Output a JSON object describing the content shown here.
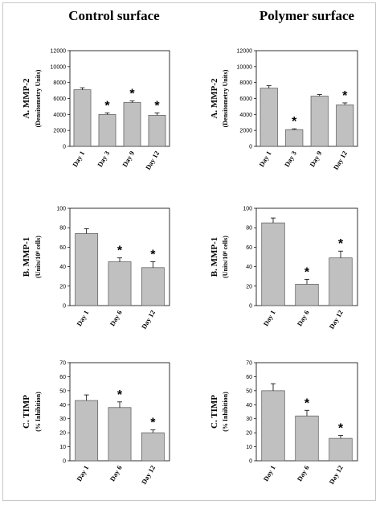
{
  "column_titles": [
    "Control surface",
    "Polymer surface"
  ],
  "colors": {
    "bar_fill": "#c0c0c0",
    "bar_stroke": "#555555",
    "axis": "#000000"
  },
  "chart_data": [
    {
      "type": "bar",
      "column": 0,
      "row": 0,
      "ylabel_main": "A.   MMP-2",
      "ylabel_sub": "(Densitometry Units)",
      "ylim": [
        0,
        12000
      ],
      "yticks": [
        0,
        2000,
        4000,
        6000,
        8000,
        10000,
        12000
      ],
      "categories": [
        "Day 1",
        "Day 3",
        "Day 9",
        "Day 12"
      ],
      "values": [
        7100,
        4000,
        5500,
        3900
      ],
      "errors": [
        250,
        200,
        200,
        300
      ],
      "significant": [
        false,
        true,
        true,
        true
      ]
    },
    {
      "type": "bar",
      "column": 1,
      "row": 0,
      "ylabel_main": "A.   MMP-2",
      "ylabel_sub": "(Densitometry Units)",
      "ylim": [
        0,
        12000
      ],
      "yticks": [
        0,
        2000,
        4000,
        6000,
        8000,
        10000,
        12000
      ],
      "categories": [
        "Day 1",
        "Day 3",
        "Day 9",
        "Day 12"
      ],
      "values": [
        7300,
        2100,
        6300,
        5200
      ],
      "errors": [
        300,
        100,
        200,
        250
      ],
      "significant": [
        false,
        true,
        false,
        true
      ]
    },
    {
      "type": "bar",
      "column": 0,
      "row": 1,
      "ylabel_main": "B. MMP-1",
      "ylabel_sub": "(Units/10⁸ cells)",
      "ylim": [
        0,
        100
      ],
      "yticks": [
        0,
        20,
        40,
        60,
        80,
        100
      ],
      "categories": [
        "Day 1",
        "Day 6",
        "Day 12"
      ],
      "values": [
        74,
        45,
        39
      ],
      "errors": [
        5,
        4,
        6
      ],
      "significant": [
        false,
        true,
        true
      ]
    },
    {
      "type": "bar",
      "column": 1,
      "row": 1,
      "ylabel_main": "B. MMP-1",
      "ylabel_sub": "(Units/10⁸ cells)",
      "ylim": [
        0,
        100
      ],
      "yticks": [
        0,
        20,
        40,
        60,
        80,
        100
      ],
      "categories": [
        "Day 1",
        "Day 6",
        "Day 12"
      ],
      "values": [
        85,
        22,
        49
      ],
      "errors": [
        5,
        5,
        7
      ],
      "significant": [
        false,
        true,
        true
      ]
    },
    {
      "type": "bar",
      "column": 0,
      "row": 2,
      "ylabel_main": "C. TIMP",
      "ylabel_sub": "(% Inhibition)",
      "ylim": [
        0,
        70
      ],
      "yticks": [
        0,
        10,
        20,
        30,
        40,
        50,
        60,
        70
      ],
      "categories": [
        "Day 1",
        "Day 6",
        "Day 12"
      ],
      "values": [
        43,
        38,
        20
      ],
      "errors": [
        4,
        4,
        2
      ],
      "significant": [
        false,
        true,
        true
      ]
    },
    {
      "type": "bar",
      "column": 1,
      "row": 2,
      "ylabel_main": "C. TIMP",
      "ylabel_sub": "(% Inhibition)",
      "ylim": [
        0,
        70
      ],
      "yticks": [
        0,
        10,
        20,
        30,
        40,
        50,
        60,
        70
      ],
      "categories": [
        "Day 1",
        "Day 6",
        "Day 12"
      ],
      "values": [
        50,
        32,
        16
      ],
      "errors": [
        5,
        4,
        2
      ],
      "significant": [
        false,
        true,
        true
      ]
    }
  ],
  "significance_marker": "*"
}
